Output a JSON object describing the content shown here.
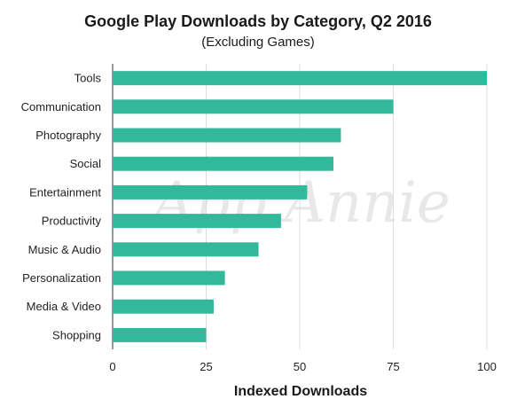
{
  "chart_data": {
    "type": "bar",
    "orientation": "horizontal",
    "title": "Google Play Downloads by Category, Q2 2016",
    "subtitle": "(Excluding Games)",
    "xlabel": "Indexed Downloads",
    "ylabel": "",
    "xlim": [
      0,
      100
    ],
    "xticks": [
      "0",
      "25",
      "50",
      "75",
      "100"
    ],
    "grid": "vertical",
    "legend": "none",
    "categories": [
      "Tools",
      "Communication",
      "Photography",
      "Social",
      "Entertainment",
      "Productivity",
      "Music & Audio",
      "Personalization",
      "Media & Video",
      "Shopping"
    ],
    "values": [
      100,
      75,
      61,
      59,
      52,
      45,
      39,
      30,
      27,
      25
    ]
  },
  "watermark": "App Annie",
  "colors": {
    "bar": "#32b89a",
    "grid": "#dcdcdc",
    "axis": "#333333"
  }
}
